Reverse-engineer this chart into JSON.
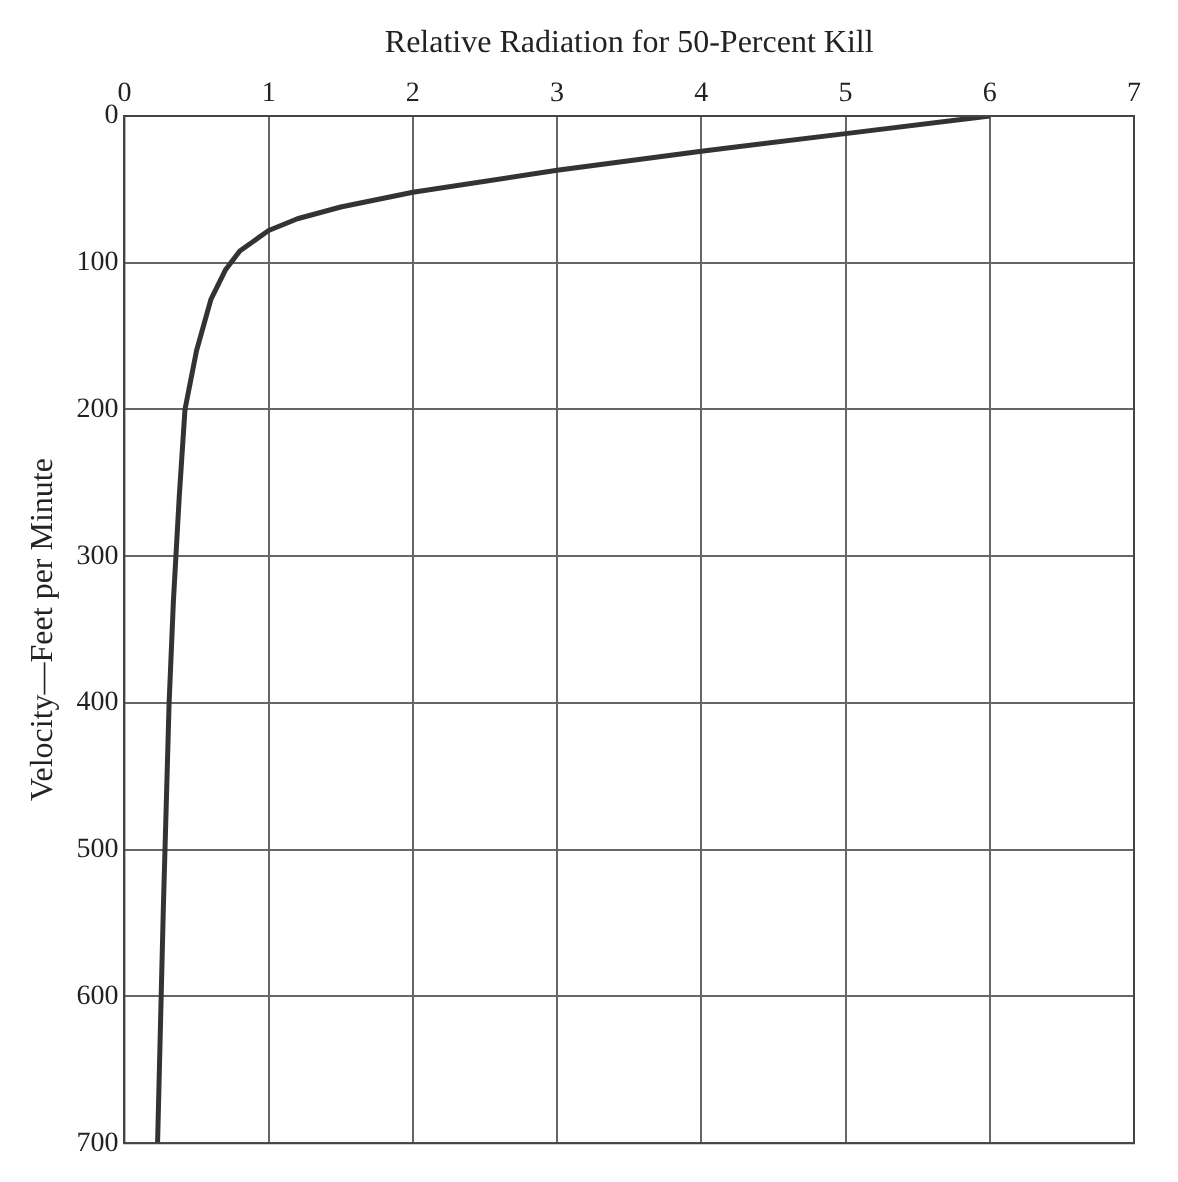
{
  "chart_data": {
    "type": "line",
    "xlabel": "Relative Radiation for 50-Percent Kill",
    "ylabel": "Velocity—Feet per Minute",
    "x": [
      6,
      5,
      4,
      3,
      2,
      1.5,
      1.2,
      1,
      0.8,
      0.7,
      0.6,
      0.5,
      0.42,
      0.38,
      0.34,
      0.31,
      0.29,
      0.27,
      0.25,
      0.23
    ],
    "values": [
      0,
      12,
      24,
      37,
      52,
      62,
      70,
      78,
      92,
      105,
      125,
      160,
      200,
      260,
      330,
      400,
      470,
      540,
      620,
      700
    ],
    "color": "#333333",
    "xlim": [
      0,
      7
    ],
    "xticks": [
      0,
      1,
      2,
      3,
      4,
      5,
      6,
      7
    ],
    "ylim": [
      700,
      0
    ],
    "yticks": [
      0,
      100,
      200,
      300,
      400,
      500,
      600,
      700
    ],
    "grid": true,
    "marker": "none"
  }
}
